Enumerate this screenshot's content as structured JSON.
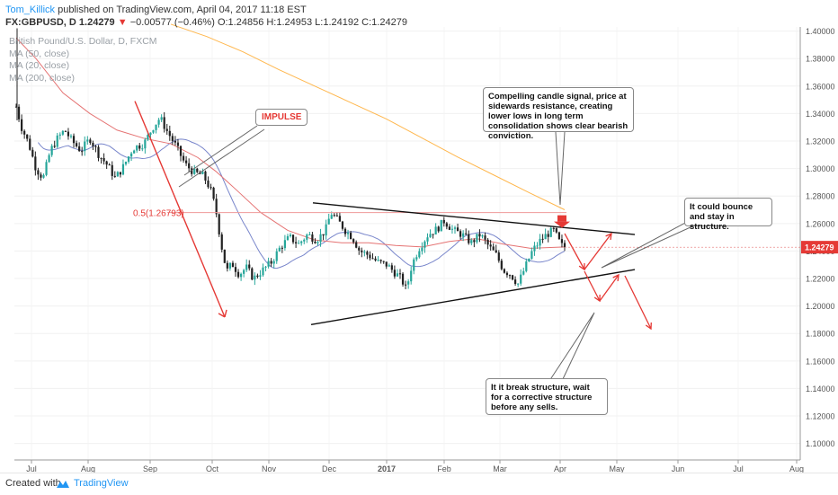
{
  "header": {
    "author": "Tom_Killick",
    "published_text": "published on TradingView.com, April 04, 2017 11:18 EST",
    "symbol": "FX:GBPUSD, D",
    "last_price": "1.24279",
    "change": "−0.00577 (−0.46%)",
    "ohlc": "O:1.24856 H:1.24953 L:1.24192 C:1.24279"
  },
  "indicators": {
    "title": "British Pound/U.S. Dollar, D, FXCM",
    "ma50": "MA (50, close)",
    "ma20": "MA (20, close)",
    "ma200": "MA (200, close)"
  },
  "annotations": {
    "impulse": "IMPULSE",
    "fib_label": "0.5(1.26793)",
    "note_candle": "Compelling candle signal, price at sidewards resistance, creating lower lows in long term consolidation shows clear bearish conviction.",
    "note_bounce": "It could bounce and stay in structure.",
    "note_break": "It it break structure, wait for a corrective structure before any sells."
  },
  "footer": {
    "created_with": "Created with",
    "brand": "TradingView"
  },
  "colors": {
    "up": "#26a69a",
    "down": "#212121",
    "ma20": "#7986cb",
    "ma50": "#e57373",
    "ma200": "#ffb74d",
    "accent_red": "#e53935",
    "price_tag": "#e53935"
  },
  "chart_data": {
    "type": "candlestick",
    "y_axis": {
      "ticks": [
        "1.40000",
        "1.38000",
        "1.36000",
        "1.34000",
        "1.32000",
        "1.30000",
        "1.28000",
        "1.26000",
        "1.24000",
        "1.22000",
        "1.20000",
        "1.18000",
        "1.16000",
        "1.14000",
        "1.12000",
        "1.10000"
      ],
      "range": [
        1.088,
        1.403
      ],
      "current_price_label": "1.24279"
    },
    "x_axis": {
      "ticks": [
        "Jul",
        "Aug",
        "Sep",
        "Oct",
        "Nov",
        "Dec",
        "2017",
        "Feb",
        "Mar",
        "Apr",
        "May",
        "Jun",
        "Jul",
        "Aug"
      ]
    },
    "fib_level": 1.26793,
    "trendlines": [
      {
        "name": "resistance",
        "from": [
          "Dec 2016",
          1.275
        ],
        "to": [
          "May 2017",
          1.252
        ]
      },
      {
        "name": "support",
        "from": [
          "Nov 2016",
          1.186
        ],
        "to": [
          "May 2017",
          1.226
        ]
      }
    ]
  }
}
